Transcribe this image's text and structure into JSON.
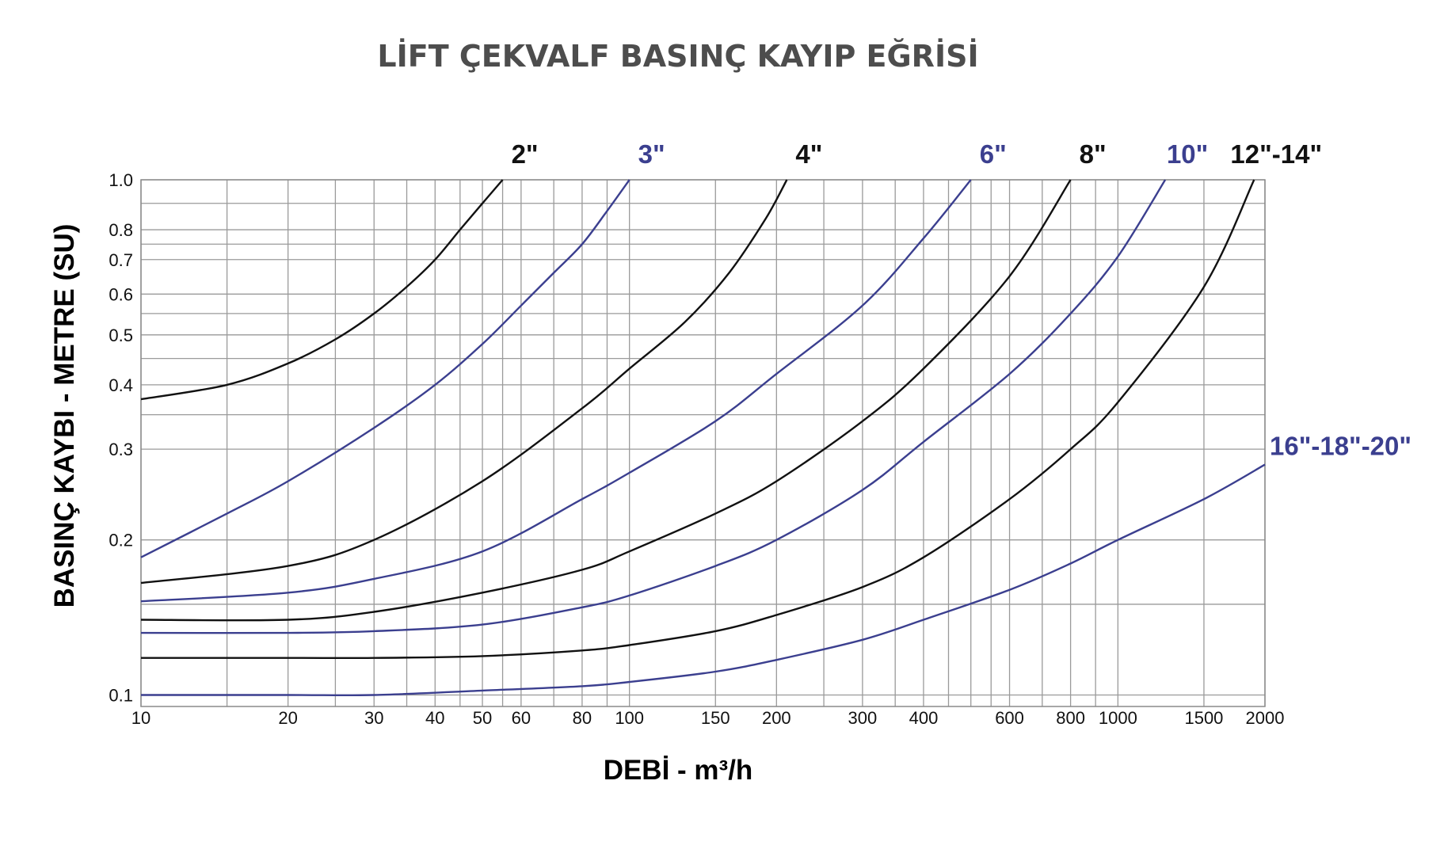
{
  "chart_data": {
    "type": "line",
    "title": "LİFT ÇEKVALF BASINÇ KAYIP EĞRİSİ",
    "xlabel": "DEBİ - m³/h",
    "ylabel": "BASINÇ KAYBI - METRE (SU)",
    "x_scale": "log",
    "y_scale": "log",
    "xlim": [
      10,
      2000
    ],
    "ylim": [
      0.095,
      1.0
    ],
    "grid": true,
    "x_ticks": [
      10,
      20,
      30,
      40,
      50,
      60,
      80,
      100,
      150,
      200,
      300,
      400,
      600,
      800,
      1000,
      1500,
      2000
    ],
    "x_tick_labels": [
      "10",
      "20",
      "30",
      "40",
      "50",
      "60",
      "80",
      "100",
      "150",
      "200",
      "300",
      "400",
      "600",
      "800",
      "1000",
      "1500",
      "2000"
    ],
    "y_ticks": [
      0.1,
      0.2,
      0.3,
      0.4,
      0.5,
      0.6,
      0.7,
      0.8,
      1.0
    ],
    "y_tick_labels": [
      "0.1",
      "0.2",
      "0.3",
      "0.4",
      "0.5",
      "0.6",
      "0.7",
      "0.8",
      "1.0"
    ],
    "colors": {
      "black": "#111111",
      "blue": "#3b3f8f"
    },
    "series": [
      {
        "name": "2\"",
        "color": "#111111",
        "x": [
          10,
          15,
          20,
          25,
          30,
          35,
          40,
          45,
          50,
          55
        ],
        "y": [
          0.375,
          0.4,
          0.44,
          0.49,
          0.55,
          0.62,
          0.7,
          0.8,
          0.9,
          1.0
        ]
      },
      {
        "name": "3\"",
        "color": "#3b3f8f",
        "x": [
          10,
          15,
          20,
          30,
          40,
          50,
          60,
          70,
          80,
          90,
          100
        ],
        "y": [
          0.185,
          0.225,
          0.26,
          0.33,
          0.4,
          0.48,
          0.57,
          0.66,
          0.75,
          0.87,
          1.0
        ]
      },
      {
        "name": "4\"",
        "color": "#111111",
        "x": [
          10,
          20,
          30,
          50,
          80,
          100,
          130,
          160,
          190,
          210
        ],
        "y": [
          0.165,
          0.178,
          0.2,
          0.26,
          0.36,
          0.43,
          0.53,
          0.66,
          0.84,
          1.0
        ]
      },
      {
        "name": "6\"",
        "color": "#3b3f8f",
        "x": [
          10,
          20,
          30,
          50,
          80,
          100,
          150,
          200,
          300,
          400,
          500
        ],
        "y": [
          0.152,
          0.158,
          0.168,
          0.19,
          0.24,
          0.27,
          0.34,
          0.42,
          0.57,
          0.77,
          1.0
        ]
      },
      {
        "name": "8\"",
        "color": "#111111",
        "x": [
          10,
          20,
          30,
          50,
          80,
          100,
          150,
          200,
          300,
          400,
          600,
          800
        ],
        "y": [
          0.14,
          0.14,
          0.145,
          0.158,
          0.175,
          0.19,
          0.225,
          0.26,
          0.34,
          0.43,
          0.65,
          1.0
        ]
      },
      {
        "name": "10\"",
        "color": "#3b3f8f",
        "x": [
          10,
          20,
          30,
          50,
          80,
          100,
          150,
          200,
          300,
          400,
          600,
          800,
          1000,
          1250
        ],
        "y": [
          0.132,
          0.132,
          0.133,
          0.137,
          0.148,
          0.156,
          0.178,
          0.2,
          0.25,
          0.31,
          0.42,
          0.55,
          0.71,
          1.0
        ]
      },
      {
        "name": "12\"-14\"",
        "color": "#111111",
        "x": [
          10,
          20,
          30,
          50,
          80,
          100,
          150,
          200,
          300,
          400,
          600,
          800,
          1000,
          1500,
          1900
        ],
        "y": [
          0.118,
          0.118,
          0.118,
          0.119,
          0.122,
          0.125,
          0.133,
          0.143,
          0.162,
          0.185,
          0.24,
          0.3,
          0.37,
          0.62,
          1.0
        ]
      },
      {
        "name": "16\"-18\"-20\"",
        "color": "#3b3f8f",
        "x": [
          10,
          20,
          30,
          50,
          80,
          100,
          150,
          200,
          300,
          400,
          600,
          800,
          1000,
          1500,
          2000
        ],
        "y": [
          0.1,
          0.1,
          0.1,
          0.102,
          0.104,
          0.106,
          0.111,
          0.117,
          0.128,
          0.14,
          0.16,
          0.18,
          0.2,
          0.24,
          0.28
        ]
      }
    ]
  }
}
